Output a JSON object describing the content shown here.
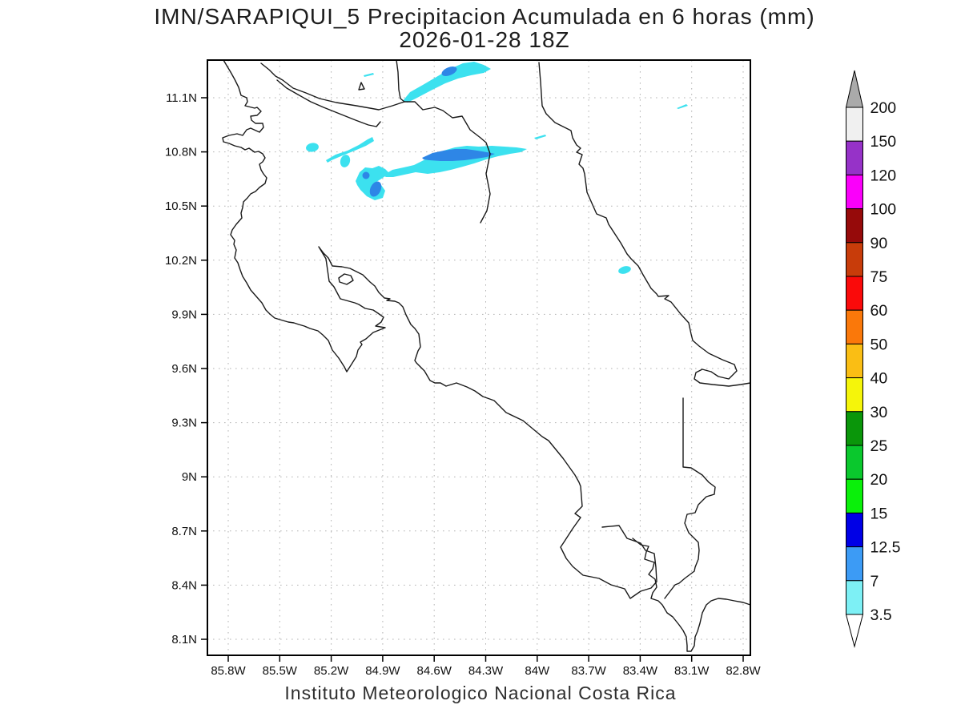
{
  "header": {
    "title_line1": "IMN/SARAPIQUI_5 Precipitacion Acumulada en 6 horas (mm)",
    "title_line2": "2026-01-28 18Z"
  },
  "footer": {
    "credit": "Instituto Meteorologico Nacional Costa Rica"
  },
  "map": {
    "lat_tick_labels": [
      "11.1N",
      "10.8N",
      "10.5N",
      "10.2N",
      "9.9N",
      "9.6N",
      "9.3N",
      "9N",
      "8.7N",
      "8.4N",
      "8.1N"
    ],
    "lon_tick_labels": [
      "85.8W",
      "85.5W",
      "85.2W",
      "84.9W",
      "84.6W",
      "84.3W",
      "84W",
      "83.7W",
      "83.4W",
      "83.1W",
      "82.8W"
    ]
  },
  "colorbar": {
    "boundary_labels_top_to_bottom": [
      "200",
      "150",
      "120",
      "100",
      "90",
      "75",
      "60",
      "50",
      "40",
      "30",
      "25",
      "20",
      "15",
      "12.5",
      "7",
      "3.5"
    ],
    "segment_colors_top_to_bottom": [
      "#f0f0f0",
      "#9632c8",
      "#fa00fa",
      "#960a0a",
      "#c83c0a",
      "#fa0a0a",
      "#fa780a",
      "#fabe14",
      "#f5f50a",
      "#0a960a",
      "#0ac82d",
      "#0af00a",
      "#0000e6",
      "#3c9bf5",
      "#7df0f5"
    ],
    "over_arrow_color": "#aaaaaa",
    "under_arrow_color": "#ffffff"
  },
  "chart_data": {
    "type": "heatmap",
    "title": "IMN/SARAPIQUI_5 Precipitacion Acumulada en 6 horas (mm)",
    "subtitle": "2026-01-28 18Z",
    "units": "mm",
    "region": "Costa Rica",
    "credit": "Instituto Meteorologico Nacional Costa Rica",
    "lat_range_n": [
      7.99,
      11.29
    ],
    "lon_range_w": [
      85.92,
      82.74
    ],
    "grid_spacing_deg": 0.3,
    "lat_ticks_n": [
      11.1,
      10.8,
      10.5,
      10.2,
      9.9,
      9.6,
      9.3,
      9.0,
      8.7,
      8.4,
      8.1
    ],
    "lon_ticks_w": [
      85.8,
      85.5,
      85.2,
      84.9,
      84.6,
      84.3,
      84.0,
      83.7,
      83.4,
      83.1,
      82.8
    ],
    "grid": "dotted",
    "legend_position": "right",
    "levels_mm": [
      3.5,
      7,
      12.5,
      15,
      20,
      25,
      30,
      40,
      50,
      60,
      75,
      90,
      100,
      120,
      150,
      200
    ],
    "level_colors_low_to_high": [
      "#7df0f5",
      "#3c9bf5",
      "#0000e6",
      "#0af00a",
      "#0ac82d",
      "#0a960a",
      "#f5f50a",
      "#fabe14",
      "#fa780a",
      "#fa0a0a",
      "#c83c0a",
      "#960a0a",
      "#fa00fa",
      "#9632c8",
      "#f0f0f0"
    ],
    "under_color": "#ffffff",
    "over_color": "#aaaaaa",
    "map_fill_colors": {
      "band_3_5_to_7": "#3ce1ef",
      "band_7_to_12_5": "#2e86e6"
    },
    "precip_features": [
      {
        "name": "diagonal-streak-north-border",
        "center_lon_w": 84.52,
        "center_lat_n": 11.22,
        "orientation": "SW-NE",
        "max_band_mm": "7-12.5"
      },
      {
        "name": "main-east-west-band",
        "lon_extent_w": [
          84.9,
          84.06
        ],
        "center_lat_n": 10.76,
        "max_band_mm": "7-12.5"
      },
      {
        "name": "cluster-with-two-cores",
        "center_lon_w": 84.93,
        "center_lat_n": 10.6,
        "max_band_mm": "7-12.5"
      },
      {
        "name": "thin-streak-nw-of-band",
        "center_lon_w": 85.11,
        "center_lat_n": 10.83,
        "max_band_mm": "3.5-7"
      },
      {
        "name": "small-oval-west",
        "center_lon_w": 85.31,
        "center_lat_n": 10.82,
        "max_band_mm": "3.5-7"
      },
      {
        "name": "small-oval-below-streak",
        "center_lon_w": 85.12,
        "center_lat_n": 10.75,
        "max_band_mm": "3.5-7"
      },
      {
        "name": "tiny-dash-north-center",
        "center_lon_w": 84.98,
        "center_lat_n": 11.23,
        "max_band_mm": "3.5-7"
      },
      {
        "name": "tiny-dash-center",
        "center_lon_w": 83.98,
        "center_lat_n": 10.89,
        "max_band_mm": "3.5-7"
      },
      {
        "name": "tiny-dash-northeast",
        "center_lon_w": 83.15,
        "center_lat_n": 11.06,
        "max_band_mm": "3.5-7"
      },
      {
        "name": "small-oval-caribbean",
        "center_lon_w": 83.49,
        "center_lat_n": 10.15,
        "max_band_mm": "3.5-7"
      }
    ]
  }
}
